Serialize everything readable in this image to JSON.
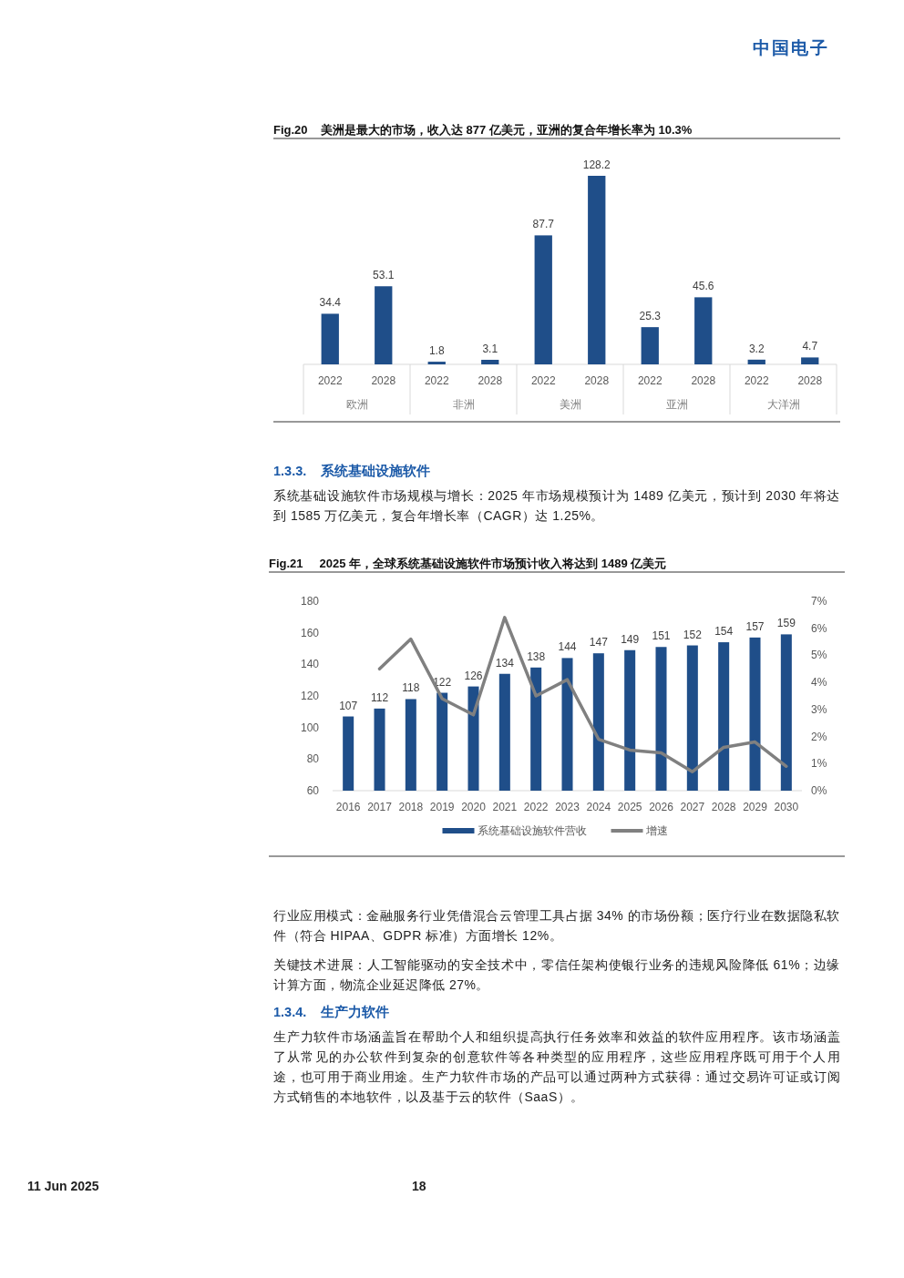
{
  "chart_data": [
    {
      "type": "other",
      "annotations": [
        "中国电子"
      ]
    },
    {
      "type": "bar",
      "title": "Fig.20    美洲是最大的市场，收入达 877 亿美元，亚洲的复合年增长率为 10.3%",
      "categories": [
        "2022",
        "2028",
        "2022",
        "2028",
        "2022",
        "2028",
        "2022",
        "2028",
        "2022",
        "2028"
      ],
      "values": [
        34.4,
        53.1,
        1.8,
        3.1,
        87.7,
        128.2,
        25.3,
        45.6,
        3.2,
        4.7
      ],
      "color": "#1f4e89",
      "data_labels": true,
      "annotations": [
        "欧洲",
        "非洲",
        "美洲",
        "亚洲",
        "大洋洲"
      ]
    },
    {
      "type": "other",
      "annotations": [
        "1.3.3.    系统基础设施软件",
        "系统基础设施软件市场规模与增长：2025 年市场规模预计为 1489 亿美元，预计到 2030 年将达到 1585 万亿美元，复合年增长率（CAGR）达 1.25%。"
      ]
    },
    {
      "type": "bar",
      "title": "Fig.21     2025 年，全球系统基础设施软件市场预计收入将达到 1489 亿美元",
      "categories": [
        "2016",
        "2017",
        "2018",
        "2019",
        "2020",
        "2021",
        "2022",
        "2023",
        "2024",
        "2025",
        "2026",
        "2027",
        "2028",
        "2029",
        "2030"
      ],
      "series": [
        {
          "name": "系统基础设施软件营收",
          "type": "bar",
          "color": "#1f4e89",
          "values": [
            107,
            112,
            118,
            122,
            126,
            134,
            138,
            144,
            147,
            149,
            151,
            152,
            154,
            157,
            159
          ],
          "value_labels": [
            "107",
            "112",
            "118",
            "122",
            "126",
            "134",
            "138",
            "144",
            "147",
            "149",
            "151",
            "152",
            "154",
            "157",
            "159"
          ]
        },
        {
          "name": "增速",
          "type": "line",
          "axis": "y2",
          "color": "#808080",
          "values": [
            null,
            4.5,
            5.6,
            3.4,
            2.8,
            6.4,
            3.5,
            4.1,
            1.9,
            1.5,
            1.4,
            0.7,
            1.6,
            1.8,
            0.9
          ]
        }
      ],
      "ylim": [
        60,
        180
      ],
      "yticks": [
        60,
        80,
        100,
        120,
        140,
        160,
        180
      ],
      "y2lim": [
        0,
        7
      ],
      "y2ticks": [
        {
          "value": 0,
          "label": "0%"
        },
        {
          "value": 1,
          "label": "1%"
        },
        {
          "value": 2,
          "label": "2%"
        },
        {
          "value": 3,
          "label": "3%"
        },
        {
          "value": 4,
          "label": "4%"
        },
        {
          "value": 5,
          "label": "5%"
        },
        {
          "value": 6,
          "label": "6%"
        },
        {
          "value": 7,
          "label": "7%"
        }
      ],
      "legend": "bottom"
    },
    {
      "type": "other",
      "annotations": [
        "行业应用模式：金融服务行业凭借混合云管理工具占据 34% 的市场份额；医疗行业在数据隐私软件（符合 HIPAA、GDPR 标准）方面增长 12%。",
        "关键技术进展：人工智能驱动的安全技术中，零信任架构使银行业务的违规风险降低 61%；边缘计算方面，物流企业延迟降低 27%。",
        "1.3.4.    生产力软件",
        "生产力软件市场涵盖旨在帮助个人和组织提高执行任务效率和效益的软件应用程序。该市场涵盖了从常见的办公软件到复杂的创意软件等各种类型的应用程序，这些应用程序既可用于个人用途，也可用于商业用途。生产力软件市场的产品可以通过两种方式获得：通过交易许可证或订阅方式销售的本地软件，以及基于云的软件（SaaS）。",
        "11 Jun 2025",
        "18"
      ]
    }
  ]
}
